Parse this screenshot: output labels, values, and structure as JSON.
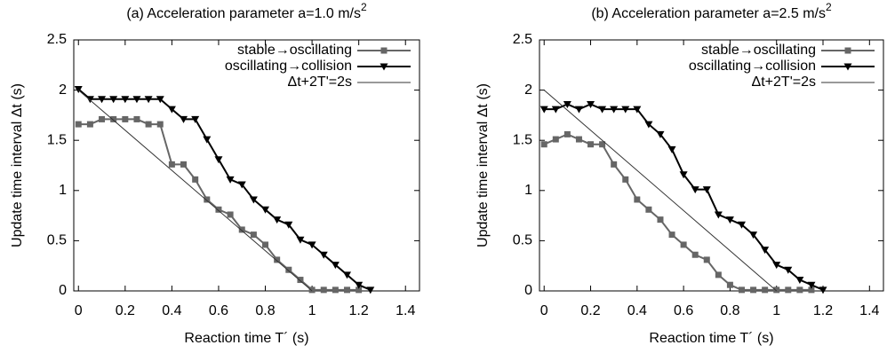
{
  "chart_data": [
    {
      "type": "line",
      "title": "(a) Acceleration parameter a=1.0 m/s",
      "title_superscript": "2",
      "x_label": "Reaction time T´ (s)",
      "y_label": "Update time interval Δt (s)",
      "xlim": [
        -0.02,
        1.46
      ],
      "ylim": [
        0,
        2.5
      ],
      "xticks": [
        0,
        0.2,
        0.4,
        0.6,
        0.8,
        1,
        1.2,
        1.4
      ],
      "yticks": [
        0,
        0.5,
        1,
        1.5,
        2,
        2.5
      ],
      "legend": "upper right",
      "series": [
        {
          "name": "stable→oscillating",
          "color": "#666666",
          "marker": "square",
          "width": 2,
          "x": [
            0,
            0.05,
            0.1,
            0.15,
            0.2,
            0.25,
            0.3,
            0.35,
            0.4,
            0.45,
            0.5,
            0.55,
            0.6,
            0.65,
            0.7,
            0.75,
            0.8,
            0.85,
            0.9,
            0.95,
            1.0,
            1.05,
            1.1,
            1.15,
            1.2
          ],
          "values": [
            1.66,
            1.66,
            1.71,
            1.71,
            1.71,
            1.71,
            1.66,
            1.66,
            1.26,
            1.26,
            1.11,
            0.91,
            0.81,
            0.76,
            0.61,
            0.56,
            0.46,
            0.31,
            0.21,
            0.11,
            0.01,
            0.01,
            0.01,
            0.01,
            0.01
          ]
        },
        {
          "name": "oscillating→collision",
          "color": "#000000",
          "marker": "triangle-down",
          "width": 2,
          "x": [
            0,
            0.05,
            0.1,
            0.15,
            0.2,
            0.25,
            0.3,
            0.35,
            0.4,
            0.45,
            0.5,
            0.55,
            0.6,
            0.65,
            0.7,
            0.75,
            0.8,
            0.85,
            0.9,
            0.95,
            1.0,
            1.05,
            1.1,
            1.15,
            1.2,
            1.25
          ],
          "values": [
            2.01,
            1.91,
            1.91,
            1.91,
            1.91,
            1.91,
            1.91,
            1.91,
            1.81,
            1.71,
            1.71,
            1.51,
            1.31,
            1.11,
            1.06,
            0.91,
            0.81,
            0.71,
            0.66,
            0.51,
            0.46,
            0.36,
            0.26,
            0.16,
            0.06,
            0.01
          ]
        },
        {
          "name": "Δt+2T'=2s",
          "color": "#333333",
          "marker": "none",
          "width": 1,
          "x": [
            0,
            1
          ],
          "values": [
            2,
            0
          ]
        }
      ]
    },
    {
      "type": "line",
      "title": "(b) Acceleration parameter a=2.5 m/s",
      "title_superscript": "2",
      "x_label": "Reaction time T´ (s)",
      "y_label": "Update time interval Δt (s)",
      "xlim": [
        -0.02,
        1.46
      ],
      "ylim": [
        0,
        2.5
      ],
      "xticks": [
        0,
        0.2,
        0.4,
        0.6,
        0.8,
        1,
        1.2,
        1.4
      ],
      "yticks": [
        0,
        0.5,
        1,
        1.5,
        2,
        2.5
      ],
      "legend": "upper right",
      "series": [
        {
          "name": "stable→oscillating",
          "color": "#666666",
          "marker": "square",
          "width": 2,
          "x": [
            0,
            0.05,
            0.1,
            0.15,
            0.2,
            0.25,
            0.3,
            0.35,
            0.4,
            0.45,
            0.5,
            0.55,
            0.6,
            0.65,
            0.7,
            0.75,
            0.8,
            0.85,
            0.9,
            0.95,
            1.0,
            1.05,
            1.1,
            1.15
          ],
          "values": [
            1.46,
            1.51,
            1.56,
            1.51,
            1.46,
            1.46,
            1.26,
            1.11,
            0.91,
            0.81,
            0.71,
            0.56,
            0.46,
            0.36,
            0.31,
            0.16,
            0.06,
            0.01,
            0.01,
            0.01,
            0.01,
            0.01,
            0.01,
            0.01
          ]
        },
        {
          "name": "oscillating→collision",
          "color": "#000000",
          "marker": "triangle-down",
          "width": 2,
          "x": [
            0,
            0.05,
            0.1,
            0.15,
            0.2,
            0.25,
            0.3,
            0.35,
            0.4,
            0.45,
            0.5,
            0.55,
            0.6,
            0.65,
            0.7,
            0.75,
            0.8,
            0.85,
            0.9,
            0.95,
            1.0,
            1.05,
            1.1,
            1.15,
            1.2
          ],
          "values": [
            1.81,
            1.81,
            1.86,
            1.81,
            1.86,
            1.81,
            1.81,
            1.81,
            1.81,
            1.66,
            1.56,
            1.41,
            1.16,
            1.01,
            1.01,
            0.76,
            0.71,
            0.66,
            0.56,
            0.41,
            0.26,
            0.21,
            0.11,
            0.06,
            0.01
          ]
        },
        {
          "name": "Δt+2T'=2s",
          "color": "#333333",
          "marker": "none",
          "width": 1,
          "x": [
            0,
            1
          ],
          "values": [
            2,
            0
          ]
        }
      ]
    }
  ]
}
